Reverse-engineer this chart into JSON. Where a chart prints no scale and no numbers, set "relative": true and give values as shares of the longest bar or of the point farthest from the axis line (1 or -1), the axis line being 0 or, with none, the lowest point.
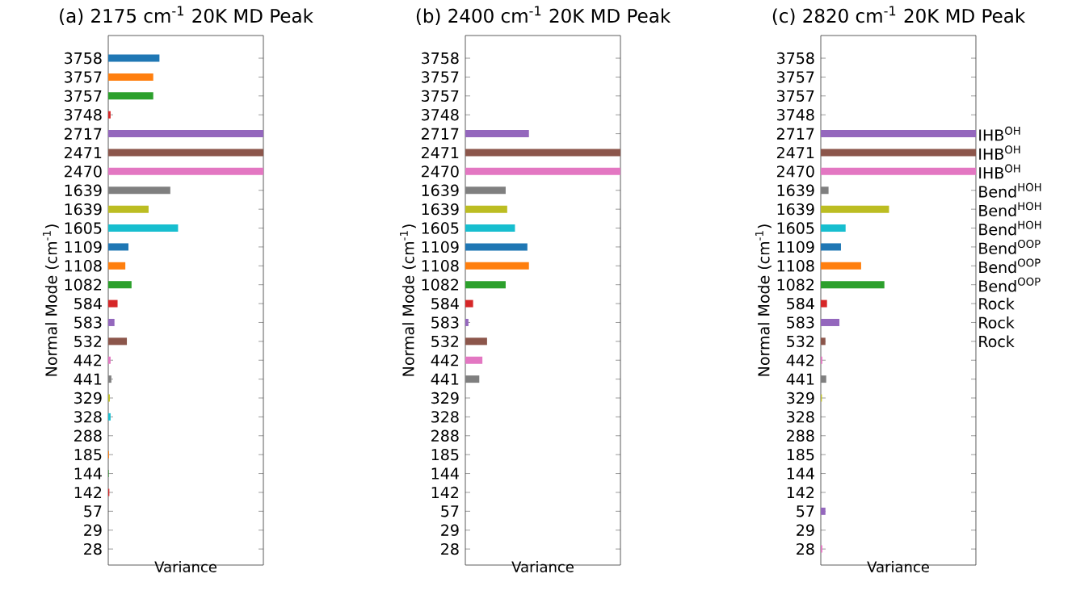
{
  "chart_data": [
    {
      "type": "bar",
      "orientation": "horizontal",
      "relative": true,
      "title": "(a) 2175 cm$^{-1}$ 20K MD Peak",
      "xlabel": "Variance",
      "ylabel": "Normal Mode (cm$^{-1}$)",
      "tick_labels": "y",
      "categories": [
        "3758",
        "3757",
        "3757",
        "3748",
        "2717",
        "2471",
        "2470",
        "1639",
        "1639",
        "1605",
        "1109",
        "1108",
        "1082",
        "584",
        "583",
        "532",
        "442",
        "441",
        "329",
        "328",
        "288",
        "185",
        "144",
        "142",
        "57",
        "29",
        "28"
      ],
      "values": [
        0.33,
        0.29,
        0.29,
        0.015,
        1,
        1,
        1,
        0.4,
        0.26,
        0.45,
        0.13,
        0.11,
        0.15,
        0.06,
        0.04,
        0.12,
        0.015,
        0.02,
        0.01,
        0.015,
        0,
        0.005,
        0.003,
        0.007,
        0,
        0,
        0
      ],
      "colors": [
        "#1f77b4",
        "#ff7f0e",
        "#2ca02c",
        "#d62728",
        "#9467bd",
        "#8c564b",
        "#e377c2",
        "#7f7f7f",
        "#bcbd22",
        "#17becf",
        "#1f77b4",
        "#ff7f0e",
        "#2ca02c",
        "#d62728",
        "#9467bd",
        "#8c564b",
        "#e377c2",
        "#7f7f7f",
        "#bcbd22",
        "#17becf",
        "#1f77b4",
        "#ff7f0e",
        "#2ca02c",
        "#d62728",
        "#9467bd",
        "#8c564b",
        "#e377c2"
      ]
    },
    {
      "type": "bar",
      "orientation": "horizontal",
      "relative": true,
      "title": "(b) 2400 cm$^{-1}$ 20K MD Peak",
      "xlabel": "Variance",
      "ylabel": "Normal Mode (cm$^{-1}$)",
      "tick_labels": "y",
      "categories": [
        "3758",
        "3757",
        "3757",
        "3748",
        "2717",
        "2471",
        "2470",
        "1639",
        "1639",
        "1605",
        "1109",
        "1108",
        "1082",
        "584",
        "583",
        "532",
        "442",
        "441",
        "329",
        "328",
        "288",
        "185",
        "144",
        "142",
        "57",
        "29",
        "28"
      ],
      "values": [
        0,
        0,
        0,
        0,
        0.41,
        1,
        1,
        0.26,
        0.27,
        0.32,
        0.4,
        0.41,
        0.26,
        0.05,
        0.02,
        0.14,
        0.11,
        0.09,
        0,
        0,
        0,
        0,
        0,
        0,
        0,
        0,
        0
      ],
      "colors": [
        "#1f77b4",
        "#ff7f0e",
        "#2ca02c",
        "#d62728",
        "#9467bd",
        "#8c564b",
        "#e377c2",
        "#7f7f7f",
        "#bcbd22",
        "#17becf",
        "#1f77b4",
        "#ff7f0e",
        "#2ca02c",
        "#d62728",
        "#9467bd",
        "#8c564b",
        "#e377c2",
        "#7f7f7f",
        "#bcbd22",
        "#17becf",
        "#1f77b4",
        "#ff7f0e",
        "#2ca02c",
        "#d62728",
        "#9467bd",
        "#8c564b",
        "#e377c2"
      ]
    },
    {
      "type": "bar",
      "orientation": "horizontal",
      "relative": true,
      "title": "(c) 2820 cm$^{-1}$ 20K MD Peak",
      "xlabel": "Variance",
      "ylabel": "Normal Mode (cm$^{-1}$)",
      "tick_labels": "y",
      "categories": [
        "3758",
        "3757",
        "3757",
        "3748",
        "2717",
        "2471",
        "2470",
        "1639",
        "1639",
        "1605",
        "1109",
        "1108",
        "1082",
        "584",
        "583",
        "532",
        "442",
        "441",
        "329",
        "328",
        "288",
        "185",
        "144",
        "142",
        "57",
        "29",
        "28"
      ],
      "values": [
        0,
        0,
        0,
        0,
        1,
        1,
        1,
        0.05,
        0.44,
        0.16,
        0.13,
        0.26,
        0.41,
        0.04,
        0.12,
        0.03,
        0.01,
        0.035,
        0.007,
        0,
        0,
        0,
        0,
        0,
        0.03,
        0,
        0.01
      ],
      "colors": [
        "#1f77b4",
        "#ff7f0e",
        "#2ca02c",
        "#d62728",
        "#9467bd",
        "#8c564b",
        "#e377c2",
        "#7f7f7f",
        "#bcbd22",
        "#17becf",
        "#1f77b4",
        "#ff7f0e",
        "#2ca02c",
        "#d62728",
        "#9467bd",
        "#8c564b",
        "#e377c2",
        "#7f7f7f",
        "#bcbd22",
        "#17becf",
        "#1f77b4",
        "#ff7f0e",
        "#2ca02c",
        "#d62728",
        "#9467bd",
        "#8c564b",
        "#e377c2"
      ],
      "annotations": [
        "IHB$^{OH}$",
        "IHB$^{OH}$",
        "IHB$^{OH}$",
        "Bend$^{HOH}$",
        "Bend$^{HOH}$",
        "Bend$^{HOH}$",
        "Bend$^{OOP}$",
        "Bend$^{OOP}$",
        "Bend$^{OOP}$",
        "Rock",
        "Rock",
        "Rock"
      ]
    }
  ]
}
